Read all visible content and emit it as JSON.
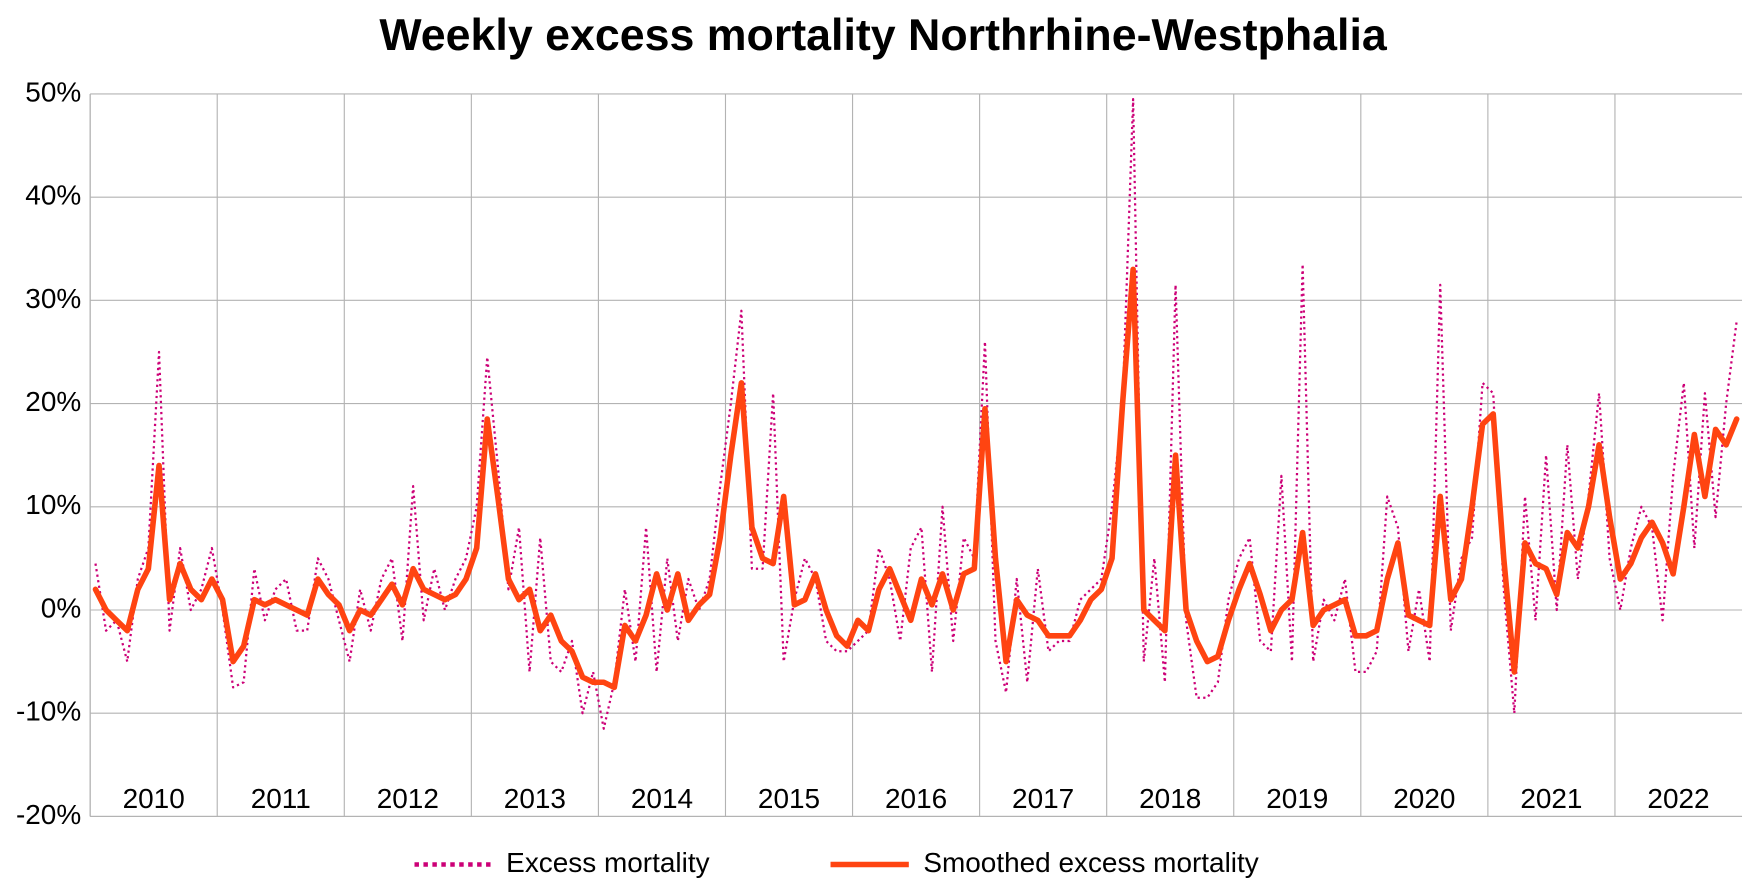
{
  "chart_data": {
    "type": "line",
    "title": "Weekly excess mortality Northrhine-Westphalia",
    "xlim": [
      2010,
      2023
    ],
    "xticks": [
      {
        "value": 2010.5,
        "label": "2010"
      },
      {
        "value": 2011.5,
        "label": "2011"
      },
      {
        "value": 2012.5,
        "label": "2012"
      },
      {
        "value": 2013.5,
        "label": "2013"
      },
      {
        "value": 2014.5,
        "label": "2014"
      },
      {
        "value": 2015.5,
        "label": "2015"
      },
      {
        "value": 2016.5,
        "label": "2016"
      },
      {
        "value": 2017.5,
        "label": "2017"
      },
      {
        "value": 2018.5,
        "label": "2018"
      },
      {
        "value": 2019.5,
        "label": "2019"
      },
      {
        "value": 2020.5,
        "label": "2020"
      },
      {
        "value": 2021.5,
        "label": "2021"
      },
      {
        "value": 2022.5,
        "label": "2022"
      }
    ],
    "ylim": [
      -20,
      50
    ],
    "yticks": [
      {
        "value": -20,
        "label": "-20%"
      },
      {
        "value": -10,
        "label": "-10%"
      },
      {
        "value": 0,
        "label": "0%"
      },
      {
        "value": 10,
        "label": "10%"
      },
      {
        "value": 20,
        "label": "20%"
      },
      {
        "value": 30,
        "label": "30%"
      },
      {
        "value": 40,
        "label": "40%"
      },
      {
        "value": 50,
        "label": "50%"
      }
    ],
    "grid": true,
    "legend": "bottom",
    "x": [
      2010.042,
      2010.125,
      2010.208,
      2010.292,
      2010.375,
      2010.458,
      2010.542,
      2010.625,
      2010.708,
      2010.792,
      2010.875,
      2010.958,
      2011.042,
      2011.125,
      2011.208,
      2011.292,
      2011.375,
      2011.458,
      2011.542,
      2011.625,
      2011.708,
      2011.792,
      2011.875,
      2011.958,
      2012.042,
      2012.125,
      2012.208,
      2012.292,
      2012.375,
      2012.458,
      2012.542,
      2012.625,
      2012.708,
      2012.792,
      2012.875,
      2012.958,
      2013.042,
      2013.125,
      2013.208,
      2013.292,
      2013.375,
      2013.458,
      2013.542,
      2013.625,
      2013.708,
      2013.792,
      2013.875,
      2013.958,
      2014.042,
      2014.125,
      2014.208,
      2014.292,
      2014.375,
      2014.458,
      2014.542,
      2014.625,
      2014.708,
      2014.792,
      2014.875,
      2014.958,
      2015.042,
      2015.125,
      2015.208,
      2015.292,
      2015.375,
      2015.458,
      2015.542,
      2015.625,
      2015.708,
      2015.792,
      2015.875,
      2015.958,
      2016.042,
      2016.125,
      2016.208,
      2016.292,
      2016.375,
      2016.458,
      2016.542,
      2016.625,
      2016.708,
      2016.792,
      2016.875,
      2016.958,
      2017.042,
      2017.125,
      2017.208,
      2017.292,
      2017.375,
      2017.458,
      2017.542,
      2017.625,
      2017.708,
      2017.792,
      2017.875,
      2017.958,
      2018.042,
      2018.125,
      2018.208,
      2018.292,
      2018.375,
      2018.458,
      2018.542,
      2018.625,
      2018.708,
      2018.792,
      2018.875,
      2018.958,
      2019.042,
      2019.125,
      2019.208,
      2019.292,
      2019.375,
      2019.458,
      2019.542,
      2019.625,
      2019.708,
      2019.792,
      2019.875,
      2019.958,
      2020.042,
      2020.125,
      2020.208,
      2020.292,
      2020.375,
      2020.458,
      2020.542,
      2020.625,
      2020.708,
      2020.792,
      2020.875,
      2020.958,
      2021.042,
      2021.125,
      2021.208,
      2021.292,
      2021.375,
      2021.458,
      2021.542,
      2021.625,
      2021.708,
      2021.792,
      2021.875,
      2021.958,
      2022.042,
      2022.125,
      2022.208,
      2022.292,
      2022.375,
      2022.458,
      2022.542,
      2022.625,
      2022.708,
      2022.792,
      2022.875,
      2022.958
    ],
    "series": [
      {
        "name": "Excess mortality",
        "color": "#cc0077",
        "style": "dotted",
        "values": [
          4.5,
          -2,
          -1,
          -5,
          3,
          6,
          25,
          -2,
          6,
          0,
          2,
          6,
          0,
          -7.5,
          -7,
          4,
          -1,
          2,
          3,
          -2,
          -2,
          5,
          3,
          -1,
          -5,
          2,
          -2,
          3,
          5,
          -3,
          12,
          -1,
          4,
          0,
          3,
          5,
          10,
          24.5,
          14,
          2,
          8,
          -6,
          7,
          -5,
          -6,
          -3,
          -10,
          -6,
          -11.5,
          -7,
          2,
          -5,
          8,
          -6,
          5,
          -3,
          3,
          0,
          3,
          12,
          20,
          29,
          4,
          4,
          21,
          -5,
          1,
          5,
          3,
          -3,
          -4,
          -4,
          -3,
          -2,
          6,
          3,
          -3,
          6,
          8,
          -6,
          10,
          -3,
          7,
          5,
          26,
          -3,
          -8,
          3,
          -7,
          4,
          -4,
          -3,
          -3,
          1,
          2,
          3,
          10,
          20,
          49.5,
          -5,
          5,
          -7,
          31.5,
          -1,
          -8.5,
          -8.5,
          -7,
          1,
          5,
          7,
          -3,
          -4,
          13,
          -5,
          33.5,
          -5,
          1,
          -1,
          3,
          -6,
          -6,
          -4,
          11,
          8,
          -4,
          2,
          -5,
          31.5,
          -2,
          5,
          7,
          22,
          21,
          2,
          -10,
          11,
          -1,
          15,
          0,
          16,
          3,
          11,
          21,
          5,
          0,
          6,
          10,
          8,
          -1,
          13,
          22,
          6,
          21,
          9,
          20,
          28
        ]
      },
      {
        "name": "Smoothed excess mortality",
        "color": "#ff4411",
        "style": "solid",
        "values": [
          2,
          0,
          -1,
          -2,
          2,
          4,
          14,
          1,
          4.5,
          2,
          1,
          3,
          1,
          -5,
          -3.5,
          1,
          0.5,
          1,
          0.5,
          0,
          -0.5,
          3,
          1.5,
          0.5,
          -2,
          0,
          -0.5,
          1,
          2.5,
          0.5,
          4,
          2,
          1.5,
          1,
          1.5,
          3,
          6,
          18.5,
          11,
          3,
          1,
          2,
          -2,
          -0.5,
          -3,
          -4,
          -6.5,
          -7,
          -7,
          -7.5,
          -1.5,
          -3,
          -0.5,
          3.5,
          0,
          3.5,
          -1,
          0.5,
          1.5,
          7,
          15,
          22,
          8,
          5,
          4.5,
          11,
          0.5,
          1,
          3.5,
          0,
          -2.5,
          -3.5,
          -1,
          -2,
          2,
          4,
          1.5,
          -1,
          3,
          0.5,
          3.5,
          0,
          3.5,
          4,
          19.5,
          5,
          -5,
          1,
          -0.5,
          -1,
          -2.5,
          -2.5,
          -2.5,
          -1,
          1,
          2,
          5,
          20,
          33,
          0,
          -1,
          -2,
          15,
          0,
          -3,
          -5,
          -4.5,
          -1,
          2,
          4.5,
          1.5,
          -2,
          0,
          1,
          7.5,
          -1.5,
          0,
          0.5,
          1,
          -2.5,
          -2.5,
          -2,
          3,
          6.5,
          -0.5,
          -1,
          -1.5,
          11,
          1,
          3,
          10,
          18,
          19,
          5,
          -6,
          6.5,
          4.5,
          4,
          1.5,
          7.5,
          6,
          10,
          16,
          9,
          3,
          4.5,
          7,
          8.5,
          6.5,
          3.5,
          10,
          17,
          11,
          17.5,
          16,
          18.5
        ]
      }
    ]
  }
}
